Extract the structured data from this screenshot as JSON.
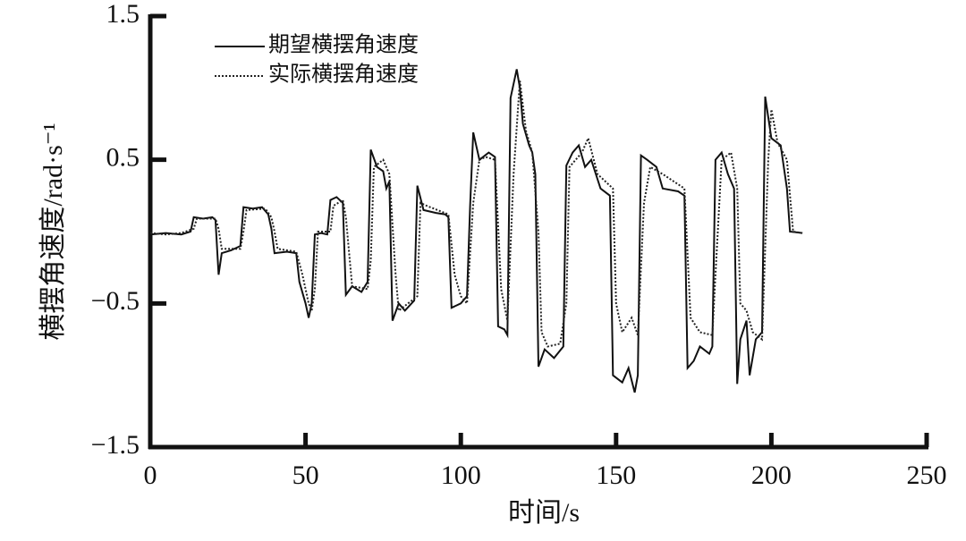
{
  "chart_data": {
    "type": "line",
    "x_label": "时间/s",
    "y_label": "横摆角速度/rad·s⁻¹",
    "xlim": [
      0,
      250
    ],
    "xticks": [
      0,
      50,
      100,
      150,
      200,
      250
    ],
    "ylim": [
      -1.5,
      1.5
    ],
    "yticks": [
      {
        "value": -1.5,
        "label": "−1.5"
      },
      {
        "value": -0.5,
        "label": "−0.5"
      },
      0.5,
      1.5
    ],
    "legend": "upper left",
    "series": [
      {
        "name": "期望横摆角速度",
        "color": "#111111",
        "dash": "solid",
        "x": [
          0,
          5,
          10,
          13,
          14,
          17,
          20,
          21,
          22,
          23,
          26,
          29,
          30,
          33,
          36,
          38,
          39,
          40,
          44,
          47,
          48,
          50,
          51,
          52,
          53,
          55,
          57,
          58,
          60,
          62,
          63,
          65,
          68,
          70,
          71,
          73,
          75,
          76,
          77,
          78,
          80,
          82,
          85,
          86,
          88,
          92,
          95,
          96,
          97,
          100,
          102,
          103,
          104,
          106,
          109,
          111,
          112,
          114,
          115,
          116,
          118,
          119,
          120,
          122,
          123,
          124,
          125,
          127,
          130,
          133,
          134,
          136,
          138,
          140,
          142,
          145,
          148,
          149,
          152,
          154,
          156,
          157,
          158,
          160,
          163,
          165,
          170,
          172,
          173,
          175,
          177,
          180,
          181,
          182,
          184,
          186,
          188,
          189,
          190,
          192,
          193,
          195,
          197,
          198,
          200,
          203,
          205,
          206,
          210
        ],
        "values": [
          -0.02,
          -0.01,
          -0.02,
          0,
          0.1,
          0.09,
          0.1,
          0.08,
          -0.3,
          -0.15,
          -0.13,
          -0.1,
          0.17,
          0.16,
          0.17,
          0.12,
          0.02,
          -0.15,
          -0.14,
          -0.15,
          -0.35,
          -0.5,
          -0.6,
          -0.5,
          -0.02,
          -0.01,
          -0.02,
          0.22,
          0.24,
          0.2,
          -0.44,
          -0.38,
          -0.42,
          -0.35,
          0.57,
          0.45,
          0.42,
          0.3,
          0.35,
          -0.62,
          -0.5,
          -0.55,
          -0.48,
          0.32,
          0.15,
          0.13,
          0.12,
          0.1,
          -0.53,
          -0.5,
          -0.45,
          0.18,
          0.69,
          0.5,
          0.55,
          0.52,
          -0.66,
          -0.68,
          -0.72,
          0.93,
          1.13,
          1.0,
          0.75,
          0.6,
          0.55,
          0.4,
          -0.94,
          -0.82,
          -0.88,
          -0.8,
          0.46,
          0.55,
          0.6,
          0.45,
          0.5,
          0.3,
          0.25,
          -1.0,
          -1.05,
          -0.95,
          -1.12,
          -1.0,
          0.53,
          0.5,
          0.45,
          0.3,
          0.28,
          0.25,
          -0.95,
          -0.9,
          -0.8,
          -0.85,
          -0.8,
          0.5,
          0.55,
          0.4,
          0.3,
          -1.06,
          -0.75,
          -0.62,
          -1.0,
          -0.75,
          -0.7,
          0.94,
          0.65,
          0.6,
          0.3,
          0,
          -0.01
        ]
      },
      {
        "name": "实际横摆角速度",
        "color": "#222222",
        "dash": "dotted",
        "x": [
          0,
          5,
          10,
          14,
          15,
          21,
          22,
          23,
          29,
          30,
          31,
          37,
          39,
          40,
          41,
          47,
          49,
          51,
          52,
          53,
          54,
          58,
          59,
          62,
          63,
          65,
          70,
          71,
          72,
          75,
          77,
          79,
          80,
          83,
          86,
          87,
          89,
          96,
          98,
          100,
          102,
          104,
          106,
          108,
          111,
          113,
          115,
          117,
          119,
          121,
          123,
          125,
          126,
          128,
          132,
          134,
          135,
          139,
          141,
          144,
          149,
          150,
          152,
          155,
          157,
          159,
          161,
          165,
          172,
          174,
          177,
          181,
          182,
          184,
          187,
          189,
          190,
          192,
          194,
          197,
          199,
          200,
          202,
          205,
          207,
          210
        ],
        "values": [
          -0.01,
          -0.02,
          -0.01,
          0.02,
          0.09,
          0.09,
          0.02,
          -0.12,
          -0.12,
          0,
          0.15,
          0.16,
          0.1,
          0,
          -0.12,
          -0.14,
          -0.3,
          -0.5,
          -0.55,
          -0.4,
          0,
          0,
          0.18,
          0.22,
          0.1,
          -0.38,
          -0.4,
          -0.2,
          0.45,
          0.5,
          0.4,
          -0.3,
          -0.55,
          -0.5,
          -0.45,
          0.2,
          0.18,
          0.12,
          -0.3,
          -0.45,
          -0.5,
          0.2,
          0.5,
          0.52,
          0.5,
          -0.4,
          -0.62,
          0.4,
          1.05,
          0.7,
          0.55,
          0,
          -0.7,
          -0.8,
          -0.78,
          -0.5,
          0.45,
          0.55,
          0.65,
          0.4,
          0.3,
          -0.5,
          -0.7,
          -0.6,
          -0.72,
          0.2,
          0.45,
          0.4,
          0.3,
          -0.6,
          -0.7,
          -0.72,
          -0.3,
          0.5,
          0.55,
          0.3,
          -0.5,
          -0.55,
          -0.7,
          -0.75,
          0.5,
          0.85,
          0.62,
          0.5,
          0,
          -0.01
        ]
      }
    ]
  }
}
